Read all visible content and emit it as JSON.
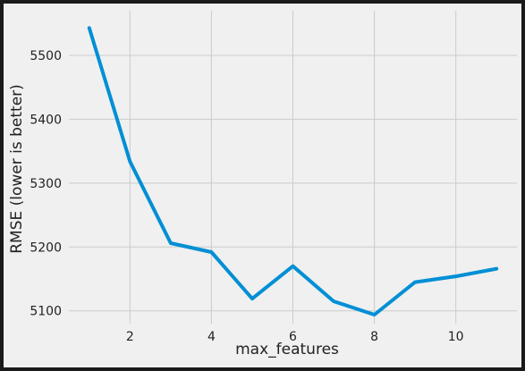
{
  "chart_data": {
    "type": "line",
    "title": "",
    "xlabel": "max_features",
    "ylabel": "RMSE (lower is better)",
    "xlim": [
      0.5,
      11.5
    ],
    "ylim": [
      5080,
      5570
    ],
    "xticks": [
      2,
      4,
      6,
      8,
      10
    ],
    "yticks": [
      5100,
      5200,
      5300,
      5400,
      5500
    ],
    "grid": true,
    "background_color": "#f0f0f0",
    "frame_color": "#1a1a1a",
    "series": [
      {
        "color": "#008fd5",
        "x": [
          1,
          2,
          3,
          4,
          5,
          6,
          7,
          8,
          9,
          10,
          11
        ],
        "y": [
          5543,
          5334,
          5206,
          5192,
          5119,
          5170,
          5115,
          5094,
          5145,
          5154,
          5166
        ]
      }
    ]
  }
}
